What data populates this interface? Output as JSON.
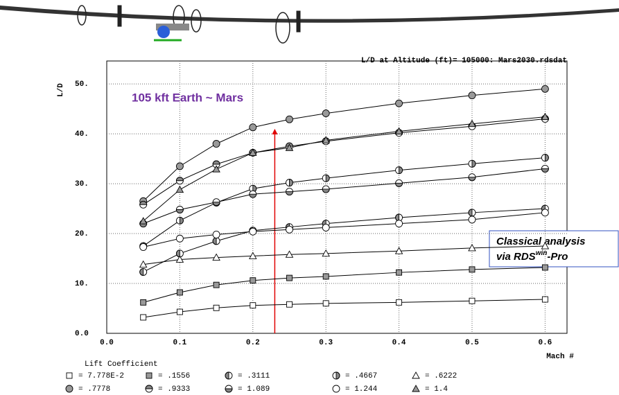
{
  "chart_data": {
    "type": "line",
    "title": "L/D at Altitude (ft)=  105000: Mars2030.rdsdat",
    "y_label": "L/D",
    "x_label": "Mach #",
    "legend_title": "Lift Coefficient",
    "annotations": [
      {
        "text": "105 kft Earth ~ Mars",
        "color": "#7030a0"
      },
      {
        "parts": [
          "Classical analysis",
          "via RDS",
          "win",
          "-Pro"
        ]
      }
    ],
    "arrow": {
      "x": 0.23,
      "y": [
        0,
        41
      ],
      "color": "#e00000"
    },
    "x": [
      0.05,
      0.1,
      0.15,
      0.2,
      0.25,
      0.3,
      0.4,
      0.5,
      0.6
    ],
    "xlim": [
      0,
      0.63
    ],
    "ylim": [
      0,
      54.6
    ],
    "xticks": [
      {
        "value": 0,
        "label": "0.0"
      },
      0.1,
      0.2,
      0.3,
      0.4,
      0.5,
      0.6
    ],
    "yticks": [
      {
        "value": 0,
        "label": "0.0"
      },
      {
        "value": 10,
        "label": "10."
      },
      {
        "value": 20,
        "label": "20."
      },
      {
        "value": 30,
        "label": "30."
      },
      {
        "value": 40,
        "label": "40."
      },
      {
        "value": 50,
        "label": "50."
      }
    ],
    "grid": true,
    "series": [
      {
        "name": "= 7.778E-2",
        "marker": "square-open",
        "values": [
          3.2,
          4.3,
          5.1,
          5.6,
          5.8,
          6.0,
          6.2,
          6.5,
          6.8
        ]
      },
      {
        "name": "= .1556",
        "marker": "square-filled",
        "values": [
          6.2,
          8.2,
          9.7,
          10.6,
          11.1,
          11.4,
          12.2,
          12.8,
          13.2
        ]
      },
      {
        "name": "= .3111",
        "marker": "half-left",
        "values": [
          12.3,
          16.0,
          18.5,
          20.6,
          21.3,
          22.0,
          23.2,
          24.2,
          25.0
        ]
      },
      {
        "name": "= .4667",
        "marker": "half-right",
        "values": [
          17.5,
          22.6,
          26.2,
          29.0,
          30.2,
          31.1,
          32.7,
          34.0,
          35.2
        ]
      },
      {
        "name": "= .6222",
        "marker": "triangle-open",
        "values": [
          13.8,
          14.8,
          15.2,
          15.5,
          15.8,
          16.0,
          16.5,
          17.1,
          17.5
        ]
      },
      {
        "name": "= .7778",
        "marker": "circle-filled",
        "values": [
          26.5,
          33.5,
          38.0,
          41.3,
          42.9,
          44.1,
          46.1,
          47.7,
          49.0
        ]
      },
      {
        "name": "= .9333",
        "marker": "half-top",
        "values": [
          25.8,
          30.6,
          33.9,
          36.2,
          37.5,
          38.5,
          40.2,
          41.5,
          43.0
        ]
      },
      {
        "name": "= 1.089",
        "marker": "half-bottom",
        "values": [
          22.0,
          24.8,
          26.3,
          27.9,
          28.4,
          28.9,
          30.1,
          31.3,
          33.0
        ]
      },
      {
        "name": "= 1.244",
        "marker": "circle-open",
        "values": [
          17.3,
          19.0,
          19.8,
          20.4,
          20.8,
          21.2,
          22.0,
          22.8,
          24.2
        ]
      },
      {
        "name": "= 1.4",
        "marker": "triangle-filled",
        "values": [
          22.5,
          28.8,
          32.9,
          36.2,
          37.2,
          38.7,
          40.5,
          42.0,
          43.4
        ]
      }
    ]
  }
}
